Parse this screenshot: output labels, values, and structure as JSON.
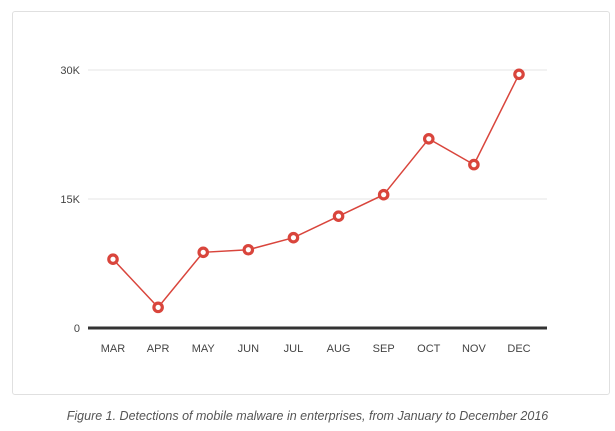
{
  "caption": "Figure 1. Detections of mobile malware in enterprises, from January to December 2016",
  "colors": {
    "line": "#d9453c",
    "grid": "#e5e5e5",
    "baseline": "#333333",
    "text": "#444444"
  },
  "chart_data": {
    "type": "line",
    "title": "",
    "xlabel": "",
    "ylabel": "",
    "categories": [
      "MAR",
      "APR",
      "MAY",
      "JUN",
      "JUL",
      "AUG",
      "SEP",
      "OCT",
      "NOV",
      "DEC"
    ],
    "series": [
      {
        "values": [
          8000,
          2400,
          8800,
          9100,
          10500,
          13000,
          15500,
          22000,
          19000,
          29500
        ]
      }
    ],
    "ylim": [
      0,
      30000
    ],
    "yticks": [
      {
        "value": 0,
        "label": "0"
      },
      {
        "value": 15000,
        "label": "15K"
      },
      {
        "value": 30000,
        "label": "30K"
      }
    ],
    "grid": true,
    "legend": "none"
  }
}
